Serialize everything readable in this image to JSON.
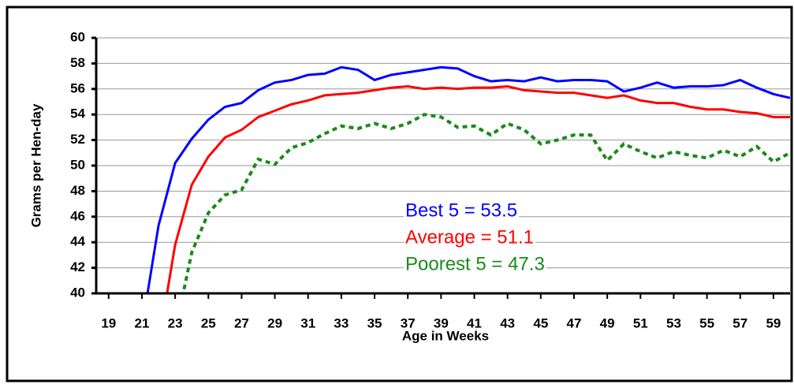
{
  "chart_data": {
    "type": "line",
    "x": [
      19,
      20,
      21,
      22,
      23,
      24,
      25,
      26,
      27,
      28,
      29,
      30,
      31,
      32,
      33,
      34,
      35,
      36,
      37,
      38,
      39,
      40,
      41,
      42,
      43,
      44,
      45,
      46,
      47,
      48,
      49,
      50,
      51,
      52,
      53,
      54,
      55,
      56,
      57,
      58,
      59,
      60
    ],
    "series": [
      {
        "name": "Best 5 = 53.5",
        "color": "#0000ff",
        "dash": false,
        "values": [
          null,
          null,
          37.3,
          45.3,
          50.2,
          52.1,
          53.6,
          54.6,
          54.9,
          55.9,
          56.5,
          56.7,
          57.1,
          57.2,
          57.7,
          57.5,
          56.7,
          57.1,
          57.3,
          57.5,
          57.7,
          57.6,
          57.0,
          56.6,
          56.7,
          56.6,
          56.9,
          56.6,
          56.7,
          56.7,
          56.6,
          55.8,
          56.1,
          56.5,
          56.1,
          56.2,
          56.2,
          56.3,
          56.7,
          56.1,
          55.6,
          55.3
        ]
      },
      {
        "name": "Average = 51.1",
        "color": "#ff0000",
        "dash": false,
        "values": [
          null,
          null,
          null,
          36.0,
          43.8,
          48.5,
          50.7,
          52.2,
          52.8,
          53.8,
          54.3,
          54.8,
          55.1,
          55.5,
          55.6,
          55.7,
          55.9,
          56.1,
          56.2,
          56.0,
          56.1,
          56.0,
          56.1,
          56.1,
          56.2,
          55.9,
          55.8,
          55.7,
          55.7,
          55.5,
          55.3,
          55.5,
          55.1,
          54.9,
          54.9,
          54.6,
          54.4,
          54.4,
          54.2,
          54.1,
          53.8,
          53.8
        ]
      },
      {
        "name": "Poorest 5 = 47.3",
        "color": "#1a8a1a",
        "dash": true,
        "values": [
          null,
          null,
          null,
          null,
          37.0,
          43.2,
          46.3,
          47.7,
          48.1,
          50.5,
          50.1,
          51.4,
          51.8,
          52.5,
          53.1,
          52.9,
          53.3,
          52.9,
          53.3,
          54.0,
          53.8,
          53.0,
          53.1,
          52.4,
          53.3,
          52.8,
          51.7,
          52.0,
          52.4,
          52.4,
          50.4,
          51.7,
          51.1,
          50.6,
          51.1,
          50.8,
          50.6,
          51.2,
          50.7,
          51.5,
          50.3,
          51.0
        ]
      }
    ],
    "x_label": "Age in Weeks",
    "y_label": "Grams per Hen-day",
    "xlim": [
      18.25,
      60
    ],
    "xticks": [
      19,
      21,
      23,
      25,
      27,
      29,
      31,
      33,
      35,
      37,
      39,
      41,
      43,
      45,
      47,
      49,
      51,
      53,
      55,
      57,
      59
    ],
    "ylim": [
      40,
      60
    ],
    "yticks": [
      40,
      42,
      44,
      46,
      48,
      50,
      52,
      54,
      56,
      58,
      60
    ],
    "grid": true
  }
}
